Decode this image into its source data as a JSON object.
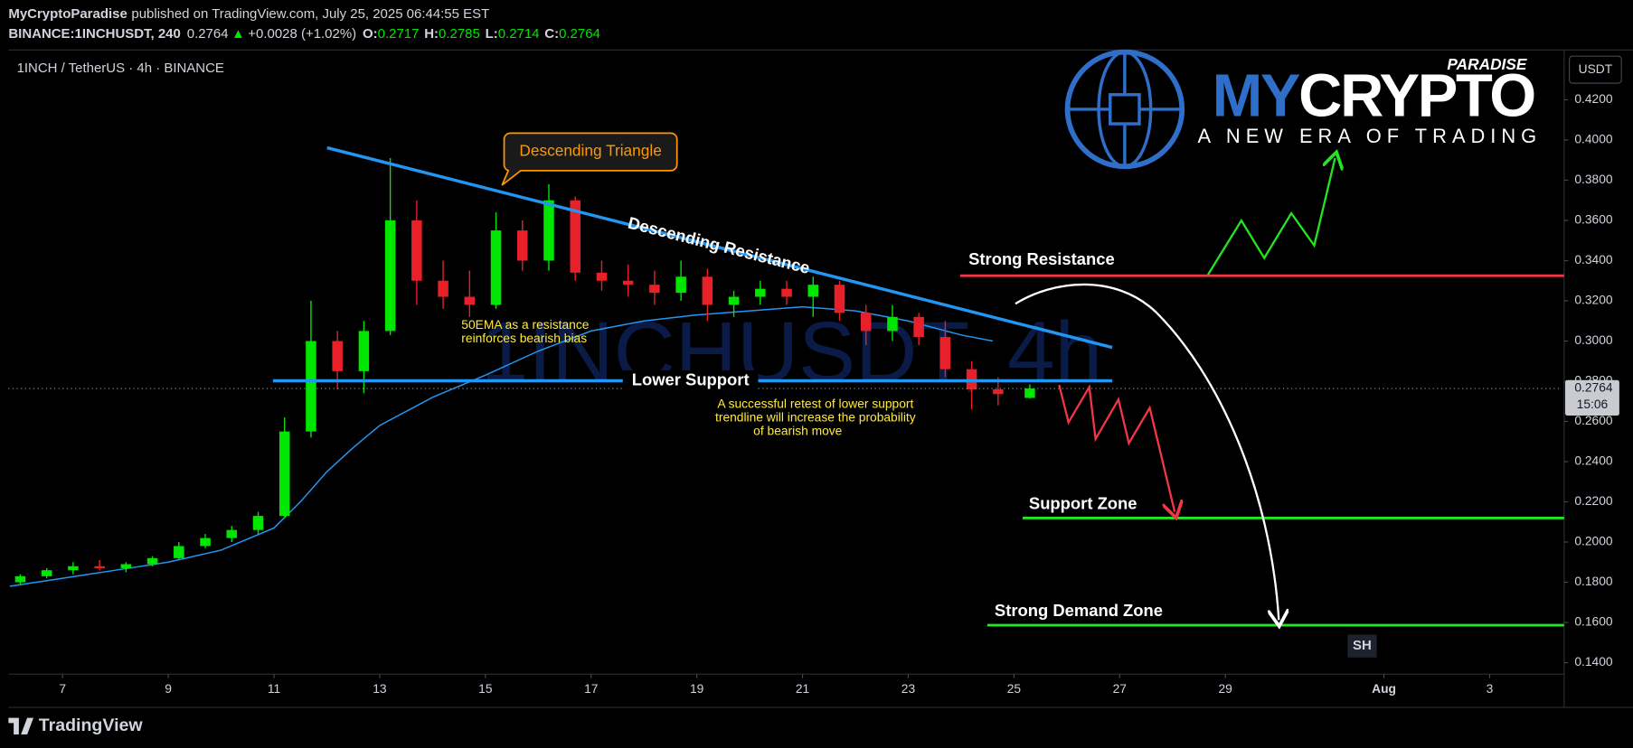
{
  "header": {
    "author": "MyCryptoParadise",
    "published": "published on TradingView.com, July 25, 2025 06:44:55 EST"
  },
  "chart_data": {
    "type": "candlestick",
    "title": "1INCH / TetherUS · 4h · BINANCE",
    "symbol": "BINANCE:1INCHUSDT, 240",
    "change": "+0.0028 (+1.02%)",
    "ohlc_labels": [
      "O:",
      "H:",
      "L:",
      "C:"
    ],
    "watermark": "1INCHUSDT, 4h",
    "currency": "USDT",
    "countdown": "15:06",
    "up_color": "#00e600",
    "down_color": "#e8202a",
    "x": [
      6.2,
      6.7,
      7.2,
      7.7,
      8.2,
      8.7,
      9.2,
      9.7,
      10.2,
      10.7,
      11.2,
      11.7,
      12.2,
      12.7,
      13.2,
      13.7,
      14.2,
      14.7,
      15.2,
      15.7,
      16.2,
      16.7,
      17.2,
      17.7,
      18.2,
      18.7,
      19.2,
      19.7,
      20.2,
      20.7,
      21.2,
      21.7,
      22.2,
      22.7,
      23.2,
      23.7,
      24.2,
      24.7,
      25.3
    ],
    "open": [
      0.18,
      0.183,
      0.186,
      0.188,
      0.187,
      0.189,
      0.192,
      0.198,
      0.202,
      0.206,
      0.213,
      0.255,
      0.3,
      0.285,
      0.305,
      0.36,
      0.33,
      0.322,
      0.318,
      0.355,
      0.34,
      0.37,
      0.334,
      0.33,
      0.328,
      0.324,
      0.332,
      0.318,
      0.322,
      0.326,
      0.322,
      0.328,
      0.314,
      0.305,
      0.312,
      0.302,
      0.286,
      0.276,
      0.2717
    ],
    "high": [
      0.184,
      0.187,
      0.19,
      0.191,
      0.19,
      0.193,
      0.2,
      0.204,
      0.208,
      0.215,
      0.262,
      0.32,
      0.305,
      0.31,
      0.391,
      0.37,
      0.34,
      0.335,
      0.364,
      0.36,
      0.378,
      0.372,
      0.34,
      0.338,
      0.335,
      0.34,
      0.336,
      0.325,
      0.33,
      0.33,
      0.332,
      0.33,
      0.318,
      0.318,
      0.314,
      0.31,
      0.29,
      0.282,
      0.2785
    ],
    "low": [
      0.179,
      0.182,
      0.184,
      0.186,
      0.185,
      0.188,
      0.191,
      0.197,
      0.2,
      0.204,
      0.212,
      0.252,
      0.276,
      0.274,
      0.303,
      0.318,
      0.316,
      0.312,
      0.316,
      0.335,
      0.335,
      0.33,
      0.325,
      0.322,
      0.318,
      0.32,
      0.31,
      0.312,
      0.318,
      0.318,
      0.312,
      0.31,
      0.298,
      0.3,
      0.298,
      0.282,
      0.266,
      0.268,
      0.2714
    ],
    "close": [
      0.183,
      0.186,
      0.188,
      0.187,
      0.189,
      0.192,
      0.198,
      0.202,
      0.206,
      0.213,
      0.255,
      0.3,
      0.285,
      0.305,
      0.36,
      0.33,
      0.322,
      0.318,
      0.355,
      0.34,
      0.37,
      0.334,
      0.33,
      0.328,
      0.324,
      0.332,
      0.318,
      0.322,
      0.326,
      0.322,
      0.328,
      0.314,
      0.305,
      0.312,
      0.302,
      0.286,
      0.276,
      0.2736,
      0.2764
    ],
    "ema": {
      "color": "#2196f3",
      "x": [
        6.0,
        7.0,
        8.0,
        9.0,
        10.0,
        11.0,
        11.5,
        12.0,
        12.5,
        13.0,
        14.0,
        15.0,
        16.0,
        17.0,
        18.0,
        19.0,
        20.0,
        21.0,
        22.0,
        23.0,
        24.0,
        24.6
      ],
      "values": [
        0.178,
        0.182,
        0.186,
        0.19,
        0.196,
        0.207,
        0.22,
        0.235,
        0.247,
        0.258,
        0.272,
        0.283,
        0.295,
        0.305,
        0.31,
        0.313,
        0.315,
        0.317,
        0.315,
        0.31,
        0.303,
        0.3
      ]
    },
    "xlim": [
      5.976,
      35.37
    ],
    "xticks": [
      7,
      9,
      11,
      13,
      15,
      17,
      19,
      21,
      23,
      25,
      27,
      29,
      {
        "value": 32,
        "label": "Aug"
      },
      {
        "value": 34,
        "label": "3"
      }
    ],
    "ylim": [
      0.1343,
      0.4448
    ],
    "yticks": [
      {
        "value": 0.42,
        "label": "0.4200"
      },
      {
        "value": 0.4,
        "label": "0.4000"
      },
      {
        "value": 0.38,
        "label": "0.3800"
      },
      {
        "value": 0.36,
        "label": "0.3600"
      },
      {
        "value": 0.34,
        "label": "0.3400"
      },
      {
        "value": 0.32,
        "label": "0.3200"
      },
      {
        "value": 0.3,
        "label": "0.3000"
      },
      {
        "value": 0.28,
        "label": "0.2800"
      },
      {
        "value": 0.26,
        "label": "0.2600"
      },
      {
        "value": 0.24,
        "label": "0.2400"
      },
      {
        "value": 0.22,
        "label": "0.2200"
      },
      {
        "value": 0.2,
        "label": "0.2000"
      },
      {
        "value": 0.18,
        "label": "0.1800"
      },
      {
        "value": 0.16,
        "label": "0.1600"
      },
      {
        "value": 0.14,
        "label": "0.1400"
      }
    ],
    "grid": false
  },
  "logo": {
    "brand_a": "MY",
    "brand_b": "CRYPTO",
    "tag": "PARADISE",
    "slogan": "A NEW ERA OF TRADING"
  },
  "annotations": {
    "triangle": "Descending Triangle",
    "resistance_line": "Descending Resistance",
    "strong_resistance": "Strong Resistance",
    "lower_support": "Lower Support",
    "ema_note": [
      "50EMA as a resistance",
      "reinforces bearish bias"
    ],
    "retest_note": [
      "A successful retest of lower support",
      "trendline will increase the probability",
      "of bearish move"
    ],
    "support_zone": "Support Zone",
    "demand_zone": "Strong Demand Zone",
    "sh": "SH"
  },
  "footer": {
    "brand": "TradingView"
  }
}
